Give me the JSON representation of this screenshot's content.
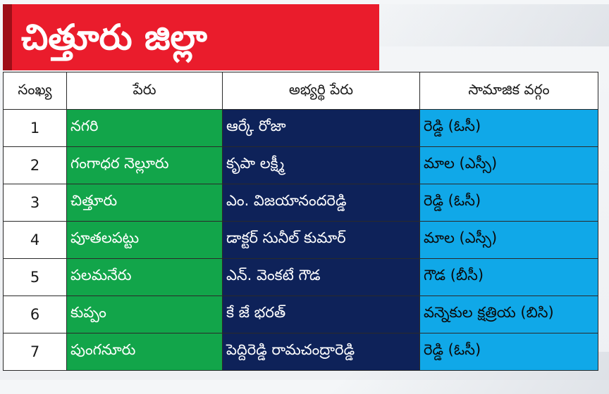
{
  "title": "చిత్తూరు జిల్లా",
  "table": {
    "headers": [
      "సంఖ్య",
      "పేరు",
      "అభ్యర్థి పేరు",
      "సామాజిక వర్గం"
    ],
    "rows": [
      {
        "num": "1",
        "constituency": "నగరి",
        "candidate": "ఆర్కే రోజా",
        "category": "రెడ్డి (ఓసీ)"
      },
      {
        "num": "2",
        "constituency": "గంగాధర నెల్లూరు",
        "candidate": "కృపా లక్ష్మీ",
        "category": "మాల (ఎస్సీ)"
      },
      {
        "num": "3",
        "constituency": "చిత్తూరు",
        "candidate": "ఎం. విజయానందరెడ్డి",
        "category": "రెడ్డి (ఓసీ)"
      },
      {
        "num": "4",
        "constituency": "పూతలపట్టు",
        "candidate": "డాక్టర్ సునీల్ కుమార్",
        "category": "మాల (ఎస్సీ)"
      },
      {
        "num": "5",
        "constituency": "పలమనేరు",
        "candidate": "ఎన్. వెంకటే గౌడ",
        "category": "గౌడ (బీసీ)"
      },
      {
        "num": "6",
        "constituency": "కుప్పం",
        "candidate": "కే జే భరత్",
        "category": "వన్నెకుల క్షత్రియ (బిసి)"
      },
      {
        "num": "7",
        "constituency": "పుంగనూరు",
        "candidate": "పెద్దిరెడ్డి రామచంద్రారెడ్డి",
        "category": "రెడ్డి (ఓసీ)"
      }
    ]
  },
  "colors": {
    "title_background": "#ea1c2c",
    "title_accent": "#9e0f18",
    "constituency_column": "#12a54a",
    "candidate_column": "#0e2259",
    "category_column": "#10a8e8"
  }
}
